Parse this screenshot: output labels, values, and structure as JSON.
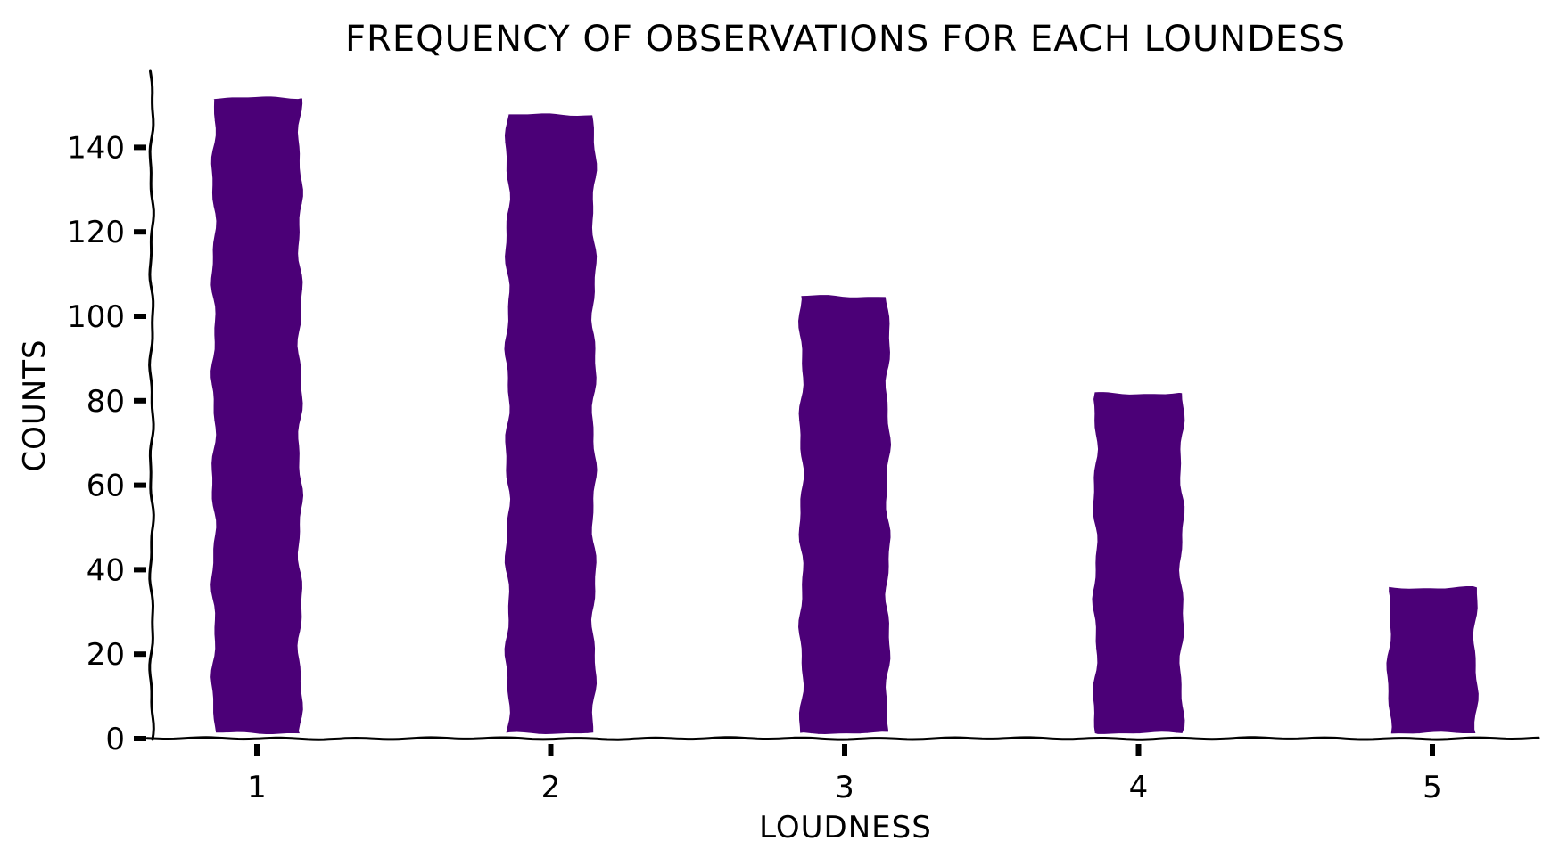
{
  "chart_data": {
    "type": "bar",
    "title": "FREQUENCY OF OBSERVATIONS FOR EACH LOUNDESS",
    "xlabel": "LOUDNESS",
    "ylabel": "COUNTS",
    "categories": [
      "1",
      "2",
      "3",
      "4",
      "5"
    ],
    "values": [
      152,
      148,
      105,
      82,
      36
    ],
    "yticks": [
      0,
      20,
      40,
      60,
      80,
      100,
      120,
      140
    ],
    "ylim": [
      0,
      158
    ],
    "bar_color": "#4b0077",
    "grid": false,
    "style": "xkcd hand-drawn"
  }
}
